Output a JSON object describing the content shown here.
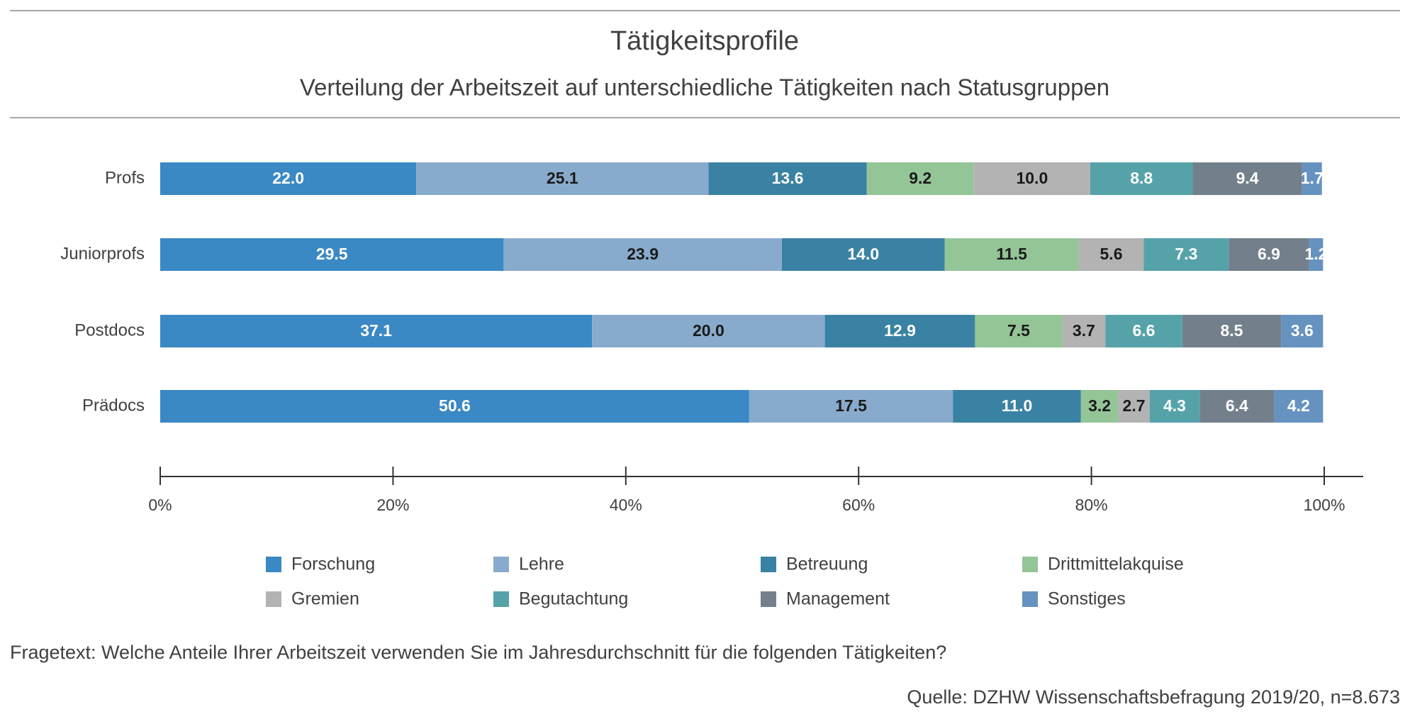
{
  "chart_data": {
    "type": "stacked-bar-horizontal",
    "title": "Tätigkeitsprofile",
    "subtitle": "Verteilung der Arbeitszeit auf unterschiedliche Tätigkeiten nach Statusgruppen",
    "categories": [
      "Profs",
      "Juniorprofs",
      "Postdocs",
      "Prädocs"
    ],
    "series": [
      {
        "name": "Forschung",
        "color": "#3a88c4",
        "values": [
          22.0,
          29.5,
          37.1,
          50.6
        ],
        "value_labels": [
          "22.0",
          "29.5",
          "37.1",
          "50.6"
        ]
      },
      {
        "name": "Lehre",
        "color": "#88abcd",
        "values": [
          25.1,
          23.9,
          20.0,
          17.5
        ],
        "value_labels": [
          "25.1",
          "23.9",
          "20.0",
          "17.5"
        ]
      },
      {
        "name": "Betreuung",
        "color": "#3a82a3",
        "values": [
          13.6,
          14.0,
          12.9,
          11.0
        ],
        "value_labels": [
          "13.6",
          "14.0",
          "12.9",
          "11.0"
        ]
      },
      {
        "name": "Drittmittelakquise",
        "color": "#94c597",
        "values": [
          9.2,
          11.5,
          7.5,
          3.2
        ],
        "value_labels": [
          "9.2",
          "11.5",
          "7.5",
          "3.2"
        ]
      },
      {
        "name": "Gremien",
        "color": "#b3b3b3",
        "values": [
          10.0,
          5.6,
          3.7,
          2.7
        ],
        "value_labels": [
          "10.0",
          "5.6",
          "3.7",
          "2.7"
        ]
      },
      {
        "name": "Begutachtung",
        "color": "#55a3a9",
        "values": [
          8.8,
          7.3,
          6.6,
          4.3
        ],
        "value_labels": [
          "8.8",
          "7.3",
          "6.6",
          "4.3"
        ]
      },
      {
        "name": "Management",
        "color": "#73808c",
        "values": [
          9.4,
          6.9,
          8.5,
          6.4
        ],
        "value_labels": [
          "9.4",
          "6.9",
          "8.5",
          "6.4"
        ]
      },
      {
        "name": "Sonstiges",
        "color": "#6692c0",
        "values": [
          1.7,
          1.2,
          3.6,
          4.2
        ],
        "value_labels": [
          "1.7",
          "1.2",
          "3.6",
          "4.2"
        ]
      }
    ],
    "xlim": [
      0,
      100
    ],
    "xticks": [
      {
        "value": 0,
        "label": "0%"
      },
      {
        "value": 20,
        "label": "20%"
      },
      {
        "value": 40,
        "label": "40%"
      },
      {
        "value": 60,
        "label": "60%"
      },
      {
        "value": 80,
        "label": "80%"
      },
      {
        "value": 100,
        "label": "100%"
      }
    ],
    "footnote": "Fragetext: Welche Anteile Ihrer Arbeitszeit verwenden Sie im Jahresdurchschnitt für die folgenden Tätigkeiten?",
    "source": "Quelle: DZHW Wissenschaftsbefragung 2019/20, n=8.673"
  }
}
